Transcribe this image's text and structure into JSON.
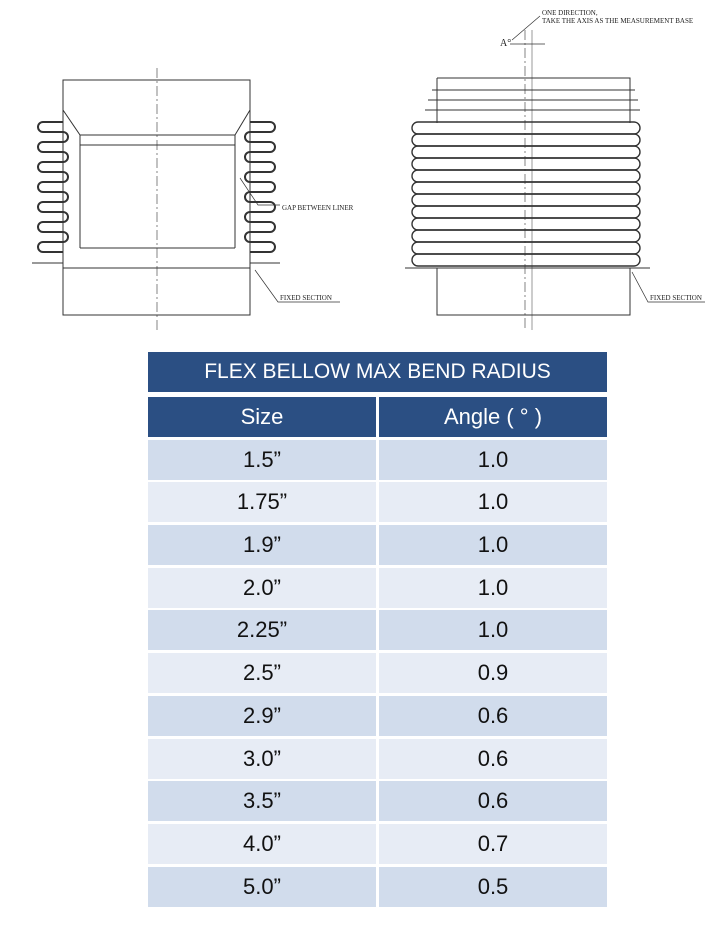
{
  "drawings": {
    "left": {
      "gap_label": "GAP BETWEEN LINER",
      "fixed_label": "FIXED SECTION"
    },
    "right": {
      "direction_label_1": "ONE DIRECTION,",
      "direction_label_2": "TAKE THE AXIS AS THE MEASUREMENT BASE",
      "angle_label": "A°",
      "fixed_label": "FIXED SECTION"
    }
  },
  "table": {
    "title": "FLEX BELLOW MAX BEND RADIUS",
    "headers": [
      "Size",
      "Angle ( ° )"
    ],
    "rows": [
      [
        "1.5”",
        "1.0"
      ],
      [
        "1.75”",
        "1.0"
      ],
      [
        "1.9”",
        "1.0"
      ],
      [
        "2.0”",
        "1.0"
      ],
      [
        "2.25”",
        "1.0"
      ],
      [
        "2.5”",
        "0.9"
      ],
      [
        "2.9”",
        "0.6"
      ],
      [
        "3.0”",
        "0.6"
      ],
      [
        "3.5”",
        "0.6"
      ],
      [
        "4.0”",
        "0.7"
      ],
      [
        "5.0”",
        "0.5"
      ]
    ],
    "colors": {
      "header": "#2b4f83",
      "row_dark": "#d1dcec",
      "row_light": "#e7ecf5"
    }
  }
}
